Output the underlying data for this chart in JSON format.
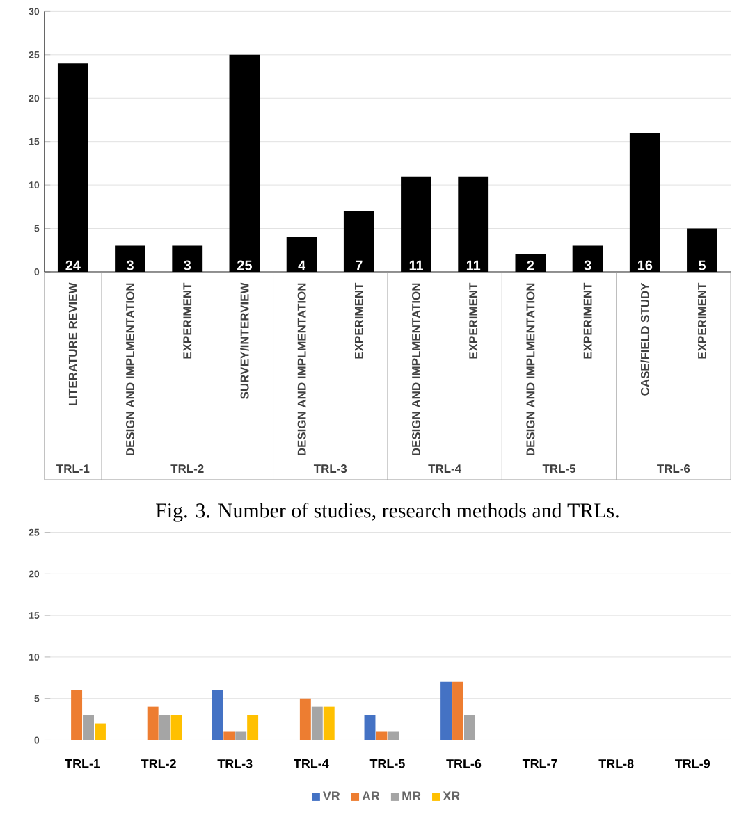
{
  "chart_data": [
    {
      "type": "bar",
      "categories": [
        "LITERATURE REVIEW",
        "DESIGN AND IMPLMENTATION",
        "EXPERIMENT",
        "SURVEY/INTERVIEW",
        "DESIGN AND IMPLMENTATION",
        "EXPERIMENT",
        "DESIGN AND IMPLMENTATION",
        "EXPERIMENT",
        "DESIGN AND IMPLMENTATION",
        "EXPERIMENT",
        "CASE/FIELD STUDY",
        "EXPERIMENT"
      ],
      "values": [
        24,
        3,
        3,
        25,
        4,
        7,
        11,
        11,
        2,
        3,
        16,
        5
      ],
      "color": "#000000",
      "data_labels": true,
      "ylim": [
        0,
        30
      ],
      "yticks": [
        0,
        5,
        10,
        15,
        20,
        25,
        30
      ],
      "grid": "y",
      "annotations": [
        "TRL-1",
        "TRL-2",
        "TRL-3",
        "TRL-4",
        "TRL-5",
        "TRL-6"
      ]
    },
    {
      "type": "bar",
      "categories": [
        "TRL-1",
        "TRL-2",
        "TRL-3",
        "TRL-4",
        "TRL-5",
        "TRL-6",
        "TRL-7",
        "TRL-8",
        "TRL-9"
      ],
      "series": [
        {
          "name": "VR",
          "color": "#4472c4",
          "values": [
            null,
            null,
            6,
            null,
            3,
            7,
            0,
            0,
            0
          ]
        },
        {
          "name": "AR",
          "color": "#ed7d31",
          "values": [
            6,
            4,
            1,
            5,
            1,
            7,
            0,
            0,
            0
          ]
        },
        {
          "name": "MR",
          "color": "#a5a5a5",
          "values": [
            3,
            3,
            1,
            4,
            1,
            3,
            0,
            0,
            0
          ]
        },
        {
          "name": "XR",
          "color": "#ffc000",
          "values": [
            2,
            3,
            3,
            4,
            0,
            0,
            0,
            0,
            0
          ]
        }
      ],
      "ylim": [
        0,
        25
      ],
      "yticks": [
        0,
        5,
        10,
        15,
        20,
        25
      ],
      "grid": "y",
      "legend": "bottom",
      "annotations": [
        "Fig. 3. Number of studies, research methods and TRLs."
      ]
    }
  ]
}
